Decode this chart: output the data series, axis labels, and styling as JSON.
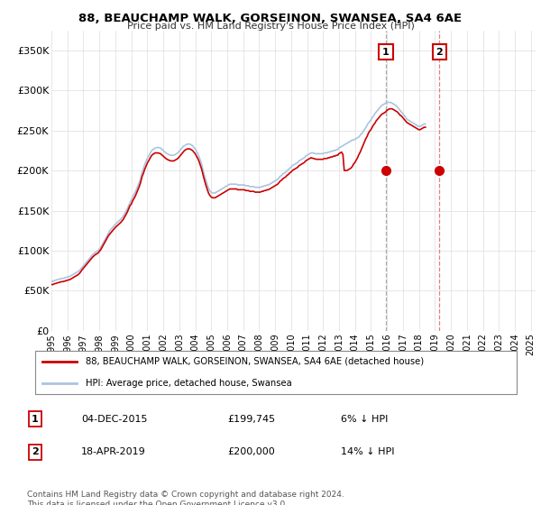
{
  "title": "88, BEAUCHAMP WALK, GORSEINON, SWANSEA, SA4 6AE",
  "subtitle": "Price paid vs. HM Land Registry's House Price Index (HPI)",
  "ylabel_ticks": [
    "£0",
    "£50K",
    "£100K",
    "£150K",
    "£200K",
    "£250K",
    "£300K",
    "£350K"
  ],
  "ytick_values": [
    0,
    50000,
    100000,
    150000,
    200000,
    250000,
    300000,
    350000
  ],
  "ylim": [
    0,
    375000
  ],
  "xlim_start": 1995.0,
  "xlim_end": 2025.3,
  "sale1": {
    "date_x": 2015.92,
    "price": 199745,
    "label": "1"
  },
  "sale2": {
    "date_x": 2019.29,
    "price": 200000,
    "label": "2"
  },
  "hpi_color": "#aac4e0",
  "price_color": "#cc0000",
  "vline1_color": "#bbbbbb",
  "vline2_color": "#dd6666",
  "legend_label1": "88, BEAUCHAMP WALK, GORSEINON, SWANSEA, SA4 6AE (detached house)",
  "legend_label2": "HPI: Average price, detached house, Swansea",
  "table_row1": [
    "1",
    "04-DEC-2015",
    "£199,745",
    "6% ↓ HPI"
  ],
  "table_row2": [
    "2",
    "18-APR-2019",
    "£200,000",
    "14% ↓ HPI"
  ],
  "footer": "Contains HM Land Registry data © Crown copyright and database right 2024.\nThis data is licensed under the Open Government Licence v3.0.",
  "hpi_data_monthly": {
    "start_year": 1995.0,
    "step": 0.0833,
    "values": [
      62000,
      61500,
      62500,
      63000,
      63500,
      64000,
      64500,
      65000,
      65200,
      65500,
      66000,
      66500,
      67000,
      67500,
      68000,
      69000,
      70000,
      71000,
      72000,
      73000,
      74000,
      75000,
      77000,
      79000,
      81000,
      83000,
      85000,
      87000,
      89000,
      91000,
      93000,
      95000,
      96500,
      98000,
      99000,
      100000,
      102000,
      104000,
      107000,
      110000,
      113000,
      116000,
      119000,
      122000,
      125000,
      127000,
      129000,
      131000,
      133000,
      134500,
      136000,
      137500,
      139000,
      141000,
      143000,
      146000,
      149000,
      152000,
      156000,
      160000,
      163000,
      167000,
      170000,
      173000,
      177000,
      181000,
      185000,
      190000,
      197000,
      202000,
      207000,
      211000,
      215000,
      218000,
      221000,
      224000,
      226000,
      227000,
      228000,
      228500,
      229000,
      228500,
      228000,
      226500,
      225000,
      223500,
      222000,
      221000,
      220000,
      219500,
      219000,
      219000,
      219000,
      220000,
      221000,
      222000,
      224000,
      226000,
      228000,
      230000,
      231000,
      232000,
      233000,
      233000,
      233000,
      232000,
      231000,
      229000,
      227000,
      224000,
      221000,
      217000,
      212000,
      207000,
      200000,
      194000,
      188000,
      183000,
      178000,
      175000,
      173000,
      172000,
      172000,
      172000,
      173000,
      174000,
      175000,
      176000,
      177000,
      178000,
      179000,
      180000,
      181000,
      182000,
      183000,
      183000,
      183000,
      183000,
      183000,
      183000,
      182000,
      182000,
      182000,
      182000,
      182000,
      182000,
      181000,
      181000,
      181000,
      180000,
      180000,
      180000,
      180000,
      179000,
      179000,
      179000,
      179000,
      179000,
      180000,
      180000,
      181000,
      181000,
      182000,
      182000,
      183000,
      184000,
      185000,
      186000,
      187000,
      188000,
      189000,
      191000,
      193000,
      194000,
      196000,
      197000,
      198000,
      200000,
      201000,
      203000,
      204000,
      206000,
      207000,
      208000,
      209000,
      210000,
      212000,
      213000,
      214000,
      215000,
      216000,
      218000,
      219000,
      220000,
      221000,
      222000,
      222000,
      222000,
      221000,
      221000,
      221000,
      221000,
      221000,
      221000,
      221000,
      222000,
      222000,
      222000,
      223000,
      223000,
      224000,
      224000,
      225000,
      225000,
      226000,
      226000,
      228000,
      229000,
      230000,
      231000,
      232000,
      233000,
      234000,
      235000,
      236000,
      237000,
      238000,
      238000,
      239000,
      240000,
      241000,
      242000,
      244000,
      246000,
      248000,
      251000,
      253000,
      256000,
      259000,
      261000,
      263000,
      266000,
      268000,
      271000,
      273000,
      275000,
      277000,
      279000,
      281000,
      282000,
      283000,
      284000,
      285000,
      285000,
      285000,
      285000,
      284000,
      283000,
      282000,
      281000,
      279000,
      277000,
      275000,
      273000,
      271000,
      269000,
      267000,
      264000,
      263000,
      262000,
      261000,
      260000,
      259000,
      258000,
      257000,
      256000,
      255000,
      255000,
      256000,
      257000,
      258000,
      258000
    ]
  },
  "price_paid_monthly": {
    "start_year": 1995.0,
    "step": 0.0833,
    "values": [
      58000,
      57500,
      58500,
      59000,
      59500,
      60000,
      60500,
      61000,
      61200,
      61500,
      62000,
      62500,
      63000,
      63500,
      64000,
      65000,
      66000,
      67000,
      68000,
      69000,
      70000,
      71500,
      73500,
      76000,
      78000,
      80000,
      82000,
      84000,
      86000,
      88000,
      90000,
      92000,
      93500,
      95000,
      96000,
      97000,
      99000,
      101000,
      104000,
      107000,
      110000,
      113000,
      116000,
      119000,
      121000,
      123000,
      125000,
      127000,
      129000,
      130500,
      132000,
      133500,
      135000,
      137000,
      139000,
      142000,
      145000,
      148000,
      152000,
      156000,
      158000,
      162000,
      165000,
      168000,
      172000,
      176000,
      180000,
      185000,
      192000,
      196000,
      201000,
      205000,
      209000,
      212000,
      215000,
      218000,
      220000,
      221000,
      222000,
      222000,
      222000,
      221500,
      221000,
      219500,
      218000,
      216500,
      215000,
      214000,
      213000,
      212500,
      212000,
      212000,
      212000,
      213000,
      214000,
      215000,
      217000,
      219000,
      221000,
      223000,
      225000,
      226000,
      227000,
      227000,
      227000,
      226000,
      225000,
      223000,
      221000,
      218000,
      215000,
      211000,
      206000,
      201000,
      194000,
      188000,
      182000,
      177000,
      172000,
      169000,
      167000,
      166000,
      166000,
      166000,
      167000,
      168000,
      169000,
      170000,
      171000,
      172000,
      173000,
      174000,
      175000,
      176000,
      177000,
      177000,
      177000,
      177000,
      177000,
      177000,
      176000,
      176000,
      176000,
      176000,
      176000,
      176000,
      175000,
      175000,
      175000,
      174000,
      174000,
      174000,
      174000,
      173000,
      173000,
      173000,
      173000,
      173000,
      174000,
      174000,
      175000,
      175000,
      176000,
      176000,
      177000,
      178000,
      179000,
      180000,
      181000,
      182000,
      183000,
      185000,
      187000,
      188000,
      190000,
      191000,
      192000,
      194000,
      195000,
      197000,
      198000,
      200000,
      201000,
      202000,
      203000,
      204000,
      206000,
      207000,
      208000,
      209000,
      210000,
      212000,
      213000,
      214000,
      215000,
      216000,
      215500,
      215000,
      214500,
      214000,
      214000,
      214000,
      214000,
      214000,
      214000,
      215000,
      215000,
      215000,
      216000,
      216000,
      217000,
      217000,
      218000,
      218000,
      219000,
      219000,
      221000,
      222000,
      223000,
      220000,
      200000,
      200000,
      200000,
      201000,
      202000,
      203000,
      205000,
      208000,
      210000,
      213000,
      216000,
      220000,
      223000,
      227000,
      231000,
      235000,
      239000,
      242000,
      246000,
      249000,
      251000,
      254000,
      257000,
      259000,
      262000,
      264000,
      266000,
      268000,
      270000,
      271000,
      272000,
      273000,
      275000,
      276000,
      277000,
      277000,
      277000,
      276000,
      275000,
      274000,
      273000,
      271000,
      269000,
      268000,
      266000,
      264000,
      262000,
      260000,
      259000,
      258000,
      257000,
      256000,
      255000,
      254000,
      253000,
      252000,
      251000,
      251000,
      252000,
      253000,
      254000,
      254000
    ]
  }
}
